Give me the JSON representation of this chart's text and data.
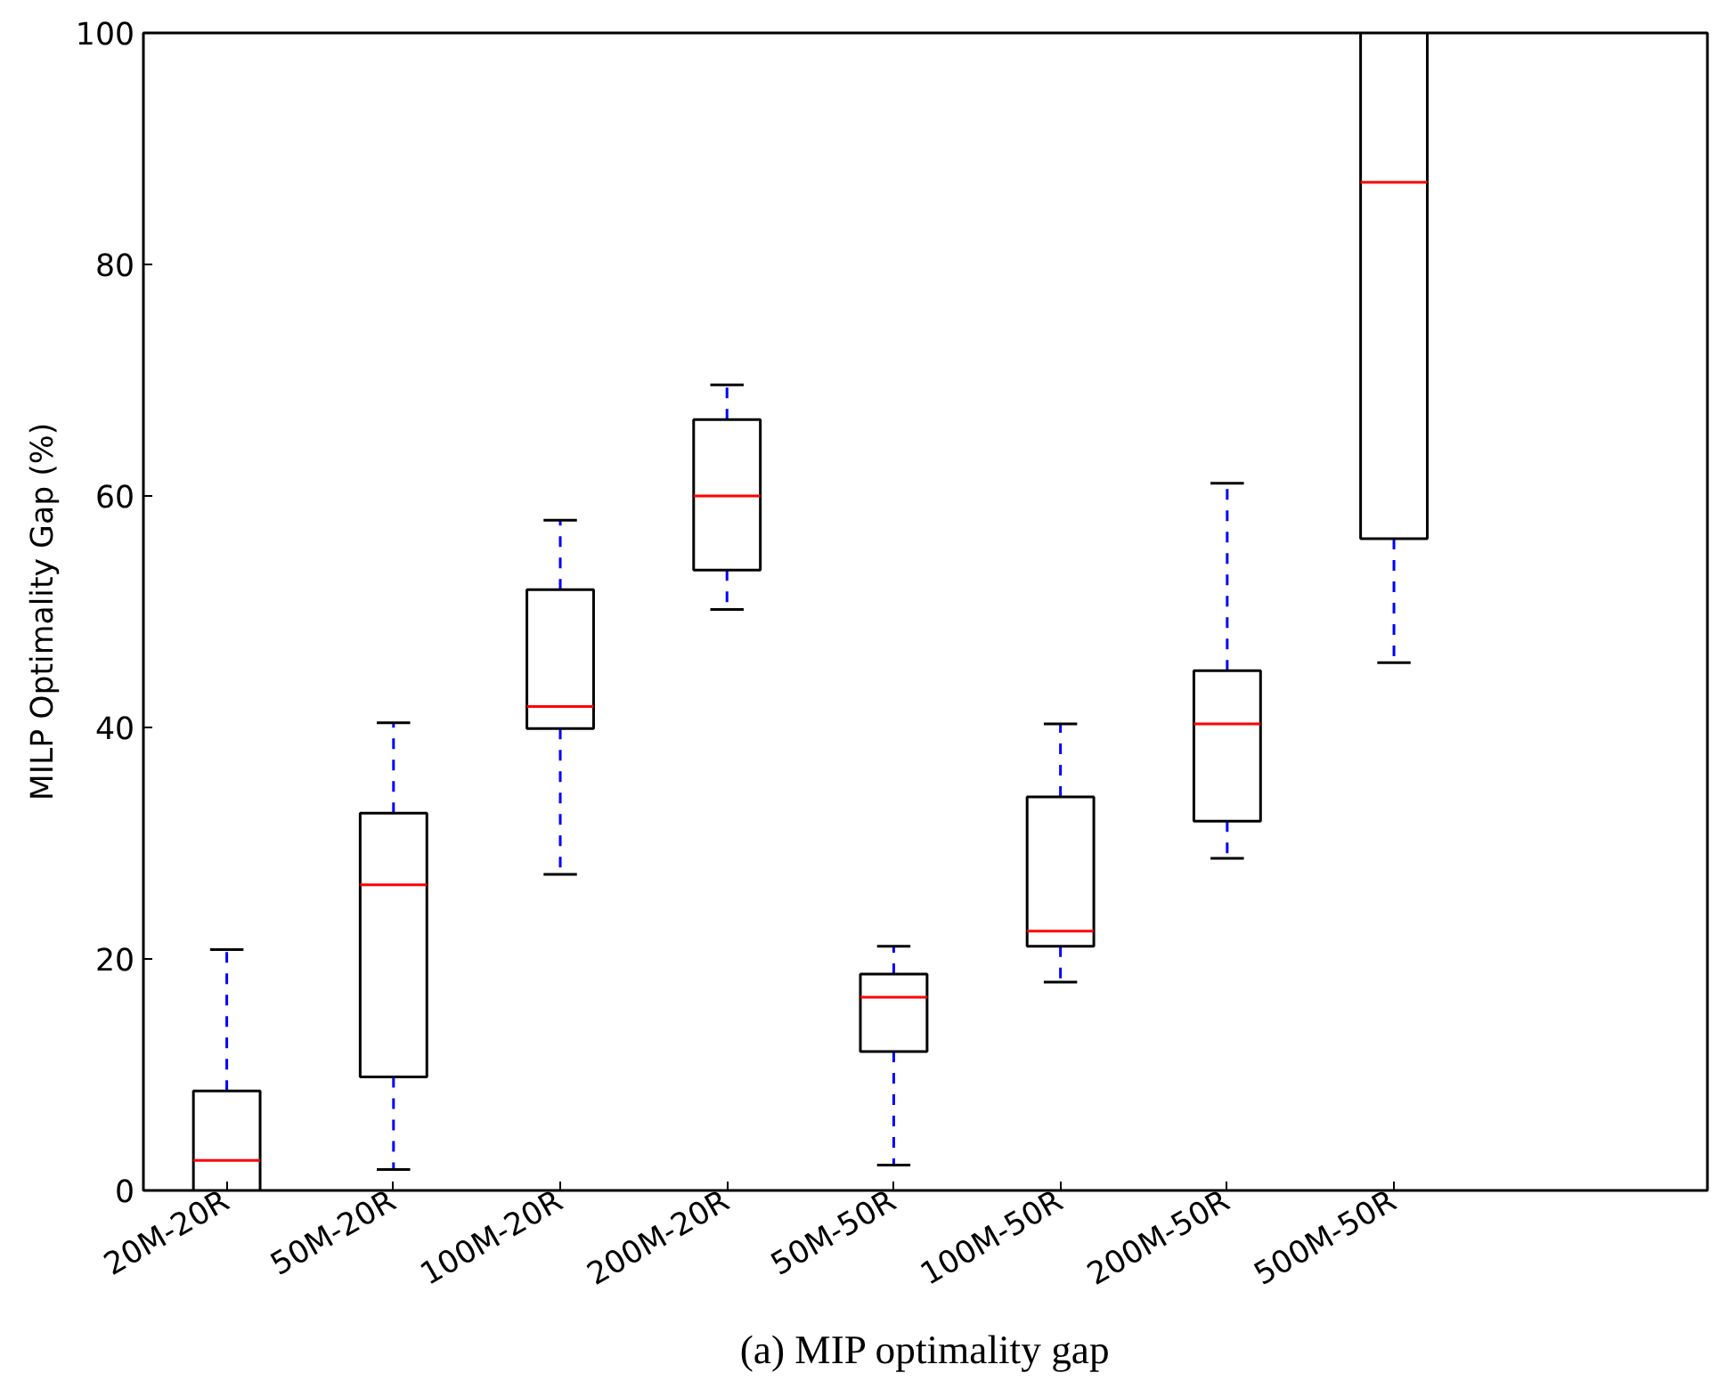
{
  "chart_data": {
    "type": "box",
    "title": "(a) MIP optimality gap",
    "ylabel": "MILP Optimality Gap (%)",
    "categories": [
      "20M-20R",
      "50M-20R",
      "100M-20R",
      "200M-20R",
      "50M-50R",
      "100M-50R",
      "200M-50R",
      "500M-50R"
    ],
    "boxes": [
      {
        "low": 0,
        "q1": 0,
        "median": 2.6,
        "q3": 8.6,
        "high": 20.8
      },
      {
        "low": 1.8,
        "q1": 9.8,
        "median": 26.4,
        "q3": 32.6,
        "high": 40.4
      },
      {
        "low": 27.3,
        "q1": 39.9,
        "median": 41.8,
        "q3": 51.9,
        "high": 57.9
      },
      {
        "low": 50.2,
        "q1": 53.6,
        "median": 60.0,
        "q3": 66.6,
        "high": 69.6
      },
      {
        "low": 2.2,
        "q1": 12.0,
        "median": 16.7,
        "q3": 18.7,
        "high": 21.1
      },
      {
        "low": 18.0,
        "q1": 21.1,
        "median": 22.4,
        "q3": 34.0,
        "high": 40.3
      },
      {
        "low": 28.7,
        "q1": 31.9,
        "median": 40.3,
        "q3": 44.9,
        "high": 61.1
      },
      {
        "low": 45.6,
        "q1": 56.3,
        "median": 87.1,
        "q3": 100,
        "high": 100
      }
    ],
    "ylim": [
      0,
      100
    ],
    "yticks": [
      0,
      20,
      40,
      60,
      80,
      100
    ],
    "grid": false
  }
}
